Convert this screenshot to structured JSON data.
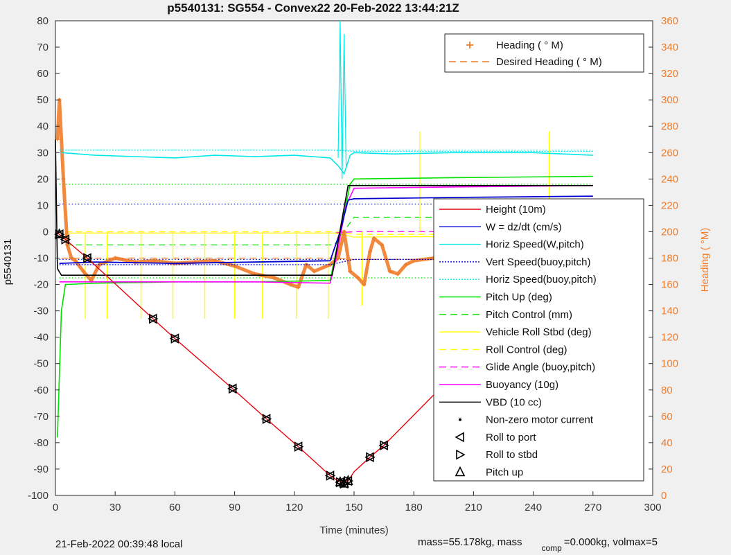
{
  "figure": {
    "bottom_left": "21-Feb-2022 00:39:48 local",
    "bottom_right_part1": "mass=55.178kg, mass",
    "bottom_right_sub": "comp",
    "bottom_right_part2": "=0.000kg, volmax=5"
  },
  "chart_data": {
    "type": "line",
    "title": "p5540131: SG554 - Convex22 20-Feb-2022 13:44:21Z",
    "xlabel": "Time (minutes)",
    "ylabel": "p5540131",
    "y2label": "Heading (  °M)",
    "xlim": [
      0,
      300
    ],
    "ylim": [
      -100,
      80
    ],
    "y2lim": [
      0,
      360
    ],
    "xticks": [
      0,
      30,
      60,
      90,
      120,
      150,
      180,
      210,
      240,
      270,
      300
    ],
    "yticks": [
      -100,
      -90,
      -80,
      -70,
      -60,
      -50,
      -40,
      -30,
      -20,
      -10,
      0,
      10,
      20,
      30,
      40,
      50,
      60,
      70,
      80
    ],
    "y2ticks": [
      0,
      20,
      40,
      60,
      80,
      100,
      120,
      140,
      160,
      180,
      200,
      220,
      240,
      260,
      280,
      300,
      320,
      340,
      360
    ],
    "colors": {
      "heading": "#f07c2a",
      "height": "#e8000b",
      "w": "#0000d0",
      "horiz": "#00e8e8",
      "pitch": "#00e000",
      "roll": "#ffff00",
      "glide": "#ff00ff",
      "vbd": "#000000"
    },
    "legend_top": [
      {
        "label": "Heading (  ° M)",
        "marker": "plus",
        "color": "#f07c2a"
      },
      {
        "label": "Desired Heading (    ° M)",
        "marker": "dash",
        "color": "#f07c2a"
      }
    ],
    "legend_main": [
      {
        "label": "Height (10m)",
        "marker": "line",
        "color": "#e8000b"
      },
      {
        "label": "W = dz/dt (cm/s)",
        "marker": "line",
        "color": "#0000d0"
      },
      {
        "label": "Horiz Speed(W,pitch)",
        "marker": "line",
        "color": "#00e8e8"
      },
      {
        "label": "Vert Speed(buoy,pitch)",
        "marker": "dot",
        "color": "#0000d0"
      },
      {
        "label": "Horiz Speed(buoy,pitch)",
        "marker": "dot",
        "color": "#00e8e8"
      },
      {
        "label": "Pitch Up (deg)",
        "marker": "line",
        "color": "#00e000"
      },
      {
        "label": "Pitch Control (mm)",
        "marker": "dash",
        "color": "#00e000"
      },
      {
        "label": "Vehicle Roll Stbd (deg)",
        "marker": "line",
        "color": "#ffff00"
      },
      {
        "label": "Roll Control (deg)",
        "marker": "dash",
        "color": "#ffff00"
      },
      {
        "label": "Glide Angle (buoy,pitch)",
        "marker": "dash",
        "color": "#ff00ff"
      },
      {
        "label": "Buoyancy (10g)",
        "marker": "line",
        "color": "#ff00ff"
      },
      {
        "label": "VBD (10 cc)",
        "marker": "line",
        "color": "#000000"
      },
      {
        "label": "Non-zero motor current",
        "marker": "point",
        "color": "#000000"
      },
      {
        "label": "Roll to port",
        "marker": "tri-left",
        "color": "#000000"
      },
      {
        "label": "Roll to stbd",
        "marker": "tri-right",
        "color": "#000000"
      },
      {
        "label": "Pitch up",
        "marker": "tri-up",
        "color": "#000000"
      }
    ],
    "series": {
      "height_10m": {
        "x": [
          0,
          2,
          16,
          49,
          60,
          89,
          106,
          122,
          138,
          143,
          145,
          147,
          150,
          158,
          165,
          248,
          264,
          270,
          272
        ],
        "y": [
          0,
          -1,
          -10,
          -33,
          -40.5,
          -59.5,
          -71,
          -81.5,
          -92.5,
          -95,
          -95.5,
          -94.5,
          -91,
          -85.5,
          -81,
          -17.5,
          -6.5,
          -2,
          -1.5
        ]
      },
      "vbd_10cc": {
        "x": [
          0,
          1,
          3,
          139,
          144,
          147,
          270
        ],
        "y": [
          35,
          -14,
          -16.5,
          -16.5,
          5,
          17.5,
          17.5
        ]
      },
      "buoyancy_10g": {
        "x": [
          2,
          20,
          60,
          100,
          138,
          141,
          146,
          150,
          200,
          270
        ],
        "y": [
          -19,
          -19,
          -19,
          -19,
          -19.5,
          -10,
          10,
          16.5,
          17,
          17.5
        ]
      },
      "w_cms": {
        "x": [
          2,
          20,
          60,
          100,
          138,
          143,
          147,
          150,
          200,
          270
        ],
        "y": [
          -12,
          -11.5,
          -12,
          -11.5,
          -11,
          0,
          12,
          12.5,
          13,
          13.5
        ]
      },
      "horiz_speed_w_pitch": {
        "x": [
          3,
          20,
          40,
          60,
          80,
          100,
          120,
          138,
          142,
          145,
          148,
          150,
          170,
          200,
          240,
          270
        ],
        "y": [
          30,
          29,
          28.5,
          28,
          29,
          28.5,
          29,
          28,
          25,
          22,
          29,
          30,
          29.5,
          30,
          30,
          29
        ]
      },
      "pitch_up_deg": {
        "x": [
          1,
          3,
          5,
          20,
          60,
          100,
          138,
          143,
          148,
          150,
          200,
          270
        ],
        "y": [
          -78,
          -30,
          -20,
          -19.5,
          -19,
          -19,
          -18.5,
          0,
          18,
          20,
          20.5,
          21
        ]
      },
      "vert_speed_buoy_pitch": {
        "x": [
          2,
          138,
          150,
          270
        ],
        "y": [
          -12.5,
          -12.5,
          -10.5,
          -10.5
        ]
      },
      "horiz_speed_buoy_pitch": {
        "x": [
          2,
          138,
          150,
          270
        ],
        "y": [
          31,
          31,
          30.5,
          30.5
        ]
      },
      "pitch_control_mm": {
        "x": [
          5,
          140,
          150,
          270
        ],
        "y": [
          -5,
          -5,
          5.5,
          5.5
        ]
      },
      "roll_control_deg": {
        "x": [
          5,
          140,
          150,
          270
        ],
        "y": [
          0,
          0,
          -1,
          -1
        ]
      },
      "glide_angle": {
        "x": [
          5,
          140,
          150,
          270
        ],
        "y": [
          -0.5,
          -0.5,
          0,
          0
        ]
      },
      "vehicle_roll_stbd_deg": {
        "x": [
          5,
          50,
          140,
          150,
          270
        ],
        "y": [
          -0.5,
          -0.5,
          -0.5,
          -2,
          -1.5
        ]
      },
      "heading_deg": {
        "x": [
          1,
          2,
          4,
          6,
          8,
          10,
          14,
          18,
          22,
          30,
          40,
          50,
          60,
          70,
          80,
          90,
          100,
          110,
          118,
          122,
          126,
          130,
          138,
          142,
          145,
          148,
          152,
          155,
          158,
          160,
          164,
          168,
          172,
          176,
          180,
          190,
          200,
          210,
          220,
          230,
          240,
          250,
          260,
          266,
          270
        ],
        "y": [
          270,
          300,
          240,
          190,
          180,
          178,
          170,
          163,
          175,
          180,
          177,
          178,
          176,
          177,
          178,
          174,
          168,
          165,
          160,
          158,
          175,
          170,
          175,
          180,
          200,
          170,
          165,
          160,
          185,
          195,
          190,
          170,
          168,
          175,
          178,
          180,
          182,
          178,
          175,
          172,
          174,
          176,
          178,
          170,
          185
        ]
      },
      "desired_heading_deg": {
        "x": [
          3,
          140,
          150,
          270
        ],
        "y": [
          180,
          180,
          179,
          179
        ]
      },
      "dotted_refs": [
        {
          "y": 18,
          "color": "#00e000"
        },
        {
          "y": 10.5,
          "color": "#0000d0"
        },
        {
          "y": -10.5,
          "color": "#0000d0"
        },
        {
          "y": -17.5,
          "color": "#00e000"
        },
        {
          "y": 31,
          "color": "#00e8e8"
        }
      ],
      "roll_to_port_x": [
        2,
        5,
        16,
        49,
        60,
        89,
        106,
        122,
        138,
        143,
        145,
        147,
        158,
        165,
        248,
        264,
        270
      ],
      "roll_to_stbd_x": [
        2,
        5,
        16,
        49,
        60,
        89,
        106,
        122,
        138,
        143,
        145,
        147,
        158,
        165,
        248,
        264,
        270
      ],
      "pitch_up_x": [
        2,
        143,
        145,
        147,
        264,
        270
      ],
      "roll_spikes_x": [
        15,
        26,
        43,
        59,
        75,
        90,
        104,
        121,
        137,
        154,
        183,
        199,
        248,
        265
      ]
    }
  }
}
